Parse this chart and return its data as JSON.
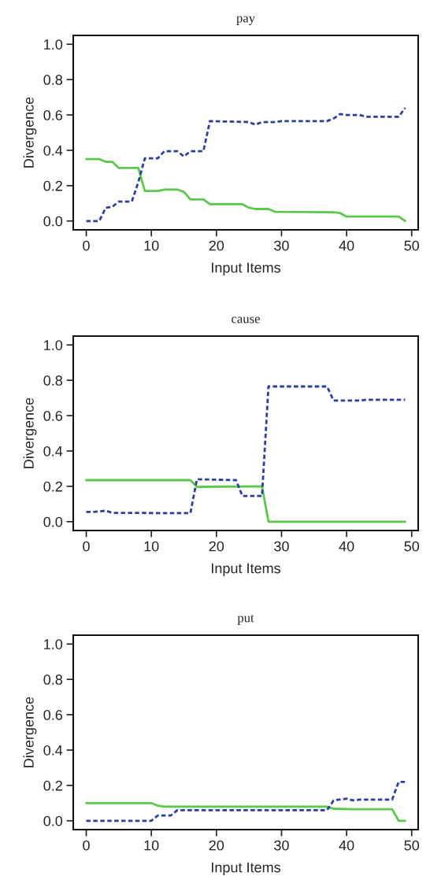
{
  "chart_data": [
    {
      "type": "line",
      "title": "pay",
      "xlabel": "Input Items",
      "ylabel": "Divergence",
      "xlim": [
        -2,
        51
      ],
      "xticks": [
        0,
        10,
        20,
        30,
        40,
        50
      ],
      "ylim": [
        -0.05,
        1.05
      ],
      "yticks": [
        {
          "value": 0,
          "label": "0.0"
        },
        {
          "value": 0.2,
          "label": "0.2"
        },
        {
          "value": 0.4,
          "label": "0.4"
        },
        {
          "value": 0.6,
          "label": "0.6"
        },
        {
          "value": 0.8,
          "label": "0.8"
        },
        {
          "value": 1,
          "label": "1.0"
        }
      ],
      "grid": false,
      "legend": false,
      "series": [
        {
          "color": "#5ac84a",
          "line_style": "solid",
          "x": [
            0,
            2,
            3,
            4,
            5,
            8,
            9,
            11,
            12,
            14,
            15,
            16,
            18,
            19,
            24,
            25,
            26,
            28,
            29,
            38,
            39,
            40,
            48,
            49
          ],
          "values": [
            0.35,
            0.35,
            0.335,
            0.335,
            0.3,
            0.3,
            0.17,
            0.17,
            0.178,
            0.178,
            0.165,
            0.122,
            0.122,
            0.095,
            0.095,
            0.075,
            0.068,
            0.068,
            0.052,
            0.05,
            0.045,
            0.025,
            0.025,
            0
          ]
        },
        {
          "color": "#2b3fa0",
          "line_style": "dotted",
          "x": [
            0,
            2,
            3,
            4,
            5,
            7,
            8,
            9,
            11,
            12,
            14,
            15,
            16,
            18,
            19,
            25,
            26,
            27,
            29,
            30,
            37,
            38,
            39,
            40,
            42,
            43,
            48,
            49
          ],
          "values": [
            0,
            0,
            0.075,
            0.08,
            0.11,
            0.11,
            0.22,
            0.355,
            0.355,
            0.395,
            0.395,
            0.365,
            0.395,
            0.395,
            0.565,
            0.56,
            0.545,
            0.56,
            0.56,
            0.565,
            0.565,
            0.58,
            0.605,
            0.6,
            0.6,
            0.59,
            0.59,
            0.64
          ]
        }
      ]
    },
    {
      "type": "line",
      "title": "cause",
      "xlabel": "Input Items",
      "ylabel": "Divergence",
      "xlim": [
        -2,
        51
      ],
      "xticks": [
        0,
        10,
        20,
        30,
        40,
        50
      ],
      "ylim": [
        -0.05,
        1.05
      ],
      "yticks": [
        {
          "value": 0,
          "label": "0.0"
        },
        {
          "value": 0.2,
          "label": "0.2"
        },
        {
          "value": 0.4,
          "label": "0.4"
        },
        {
          "value": 0.6,
          "label": "0.6"
        },
        {
          "value": 0.8,
          "label": "0.8"
        },
        {
          "value": 1,
          "label": "1.0"
        }
      ],
      "grid": false,
      "legend": false,
      "series": [
        {
          "color": "#5ac84a",
          "line_style": "solid",
          "x": [
            0,
            16,
            17,
            27,
            28,
            49
          ],
          "values": [
            0.235,
            0.235,
            0.197,
            0.2,
            0,
            0
          ]
        },
        {
          "color": "#2b3fa0",
          "line_style": "dotted",
          "x": [
            0,
            1,
            3,
            4,
            16,
            17,
            23,
            24,
            27,
            28,
            37,
            38,
            42,
            43,
            49
          ],
          "values": [
            0.055,
            0.055,
            0.062,
            0.05,
            0.048,
            0.24,
            0.235,
            0.145,
            0.145,
            0.765,
            0.765,
            0.685,
            0.685,
            0.69,
            0.69
          ]
        }
      ]
    },
    {
      "type": "line",
      "title": "put",
      "xlabel": "Input Items",
      "ylabel": "Divergence",
      "xlim": [
        -2,
        51
      ],
      "xticks": [
        0,
        10,
        20,
        30,
        40,
        50
      ],
      "ylim": [
        -0.05,
        1.05
      ],
      "yticks": [
        {
          "value": 0,
          "label": "0.0"
        },
        {
          "value": 0.2,
          "label": "0.2"
        },
        {
          "value": 0.4,
          "label": "0.4"
        },
        {
          "value": 0.6,
          "label": "0.6"
        },
        {
          "value": 0.8,
          "label": "0.8"
        },
        {
          "value": 1,
          "label": "1.0"
        }
      ],
      "grid": false,
      "legend": false,
      "series": [
        {
          "color": "#5ac84a",
          "line_style": "solid",
          "x": [
            0,
            10,
            11,
            12,
            37,
            38,
            41,
            47,
            48,
            49
          ],
          "values": [
            0.1,
            0.1,
            0.085,
            0.08,
            0.08,
            0.068,
            0.065,
            0.065,
            0,
            0
          ]
        },
        {
          "color": "#2b3fa0",
          "line_style": "dotted",
          "x": [
            0,
            10,
            11,
            13,
            14,
            37,
            38,
            40,
            41,
            42,
            47,
            48,
            49
          ],
          "values": [
            0,
            0,
            0.03,
            0.03,
            0.06,
            0.06,
            0.115,
            0.125,
            0.115,
            0.12,
            0.12,
            0.22,
            0.22
          ]
        }
      ]
    }
  ]
}
